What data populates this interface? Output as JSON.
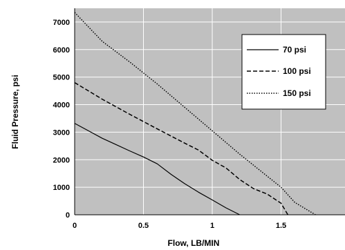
{
  "chart_data": {
    "type": "line",
    "title": "",
    "xlabel": "Flow, LB/MIN",
    "ylabel": "Fluid Pressure, psi",
    "xlim": [
      0,
      2
    ],
    "ylim": [
      0,
      7500
    ],
    "xticks": [
      0,
      0.5,
      1,
      1.5
    ],
    "xtick_labels": [
      "0",
      "0.5",
      "1",
      "1.5"
    ],
    "yticks": [
      0,
      1000,
      2000,
      3000,
      4000,
      5000,
      6000,
      7000
    ],
    "ytick_labels": [
      "0",
      "1000",
      "2000",
      "3000",
      "4000",
      "5000",
      "6000",
      "7000"
    ],
    "grid": true,
    "legend_position": "top-right",
    "colors": {
      "plot_background": "#c0c0c0",
      "gridline": "#ffffff",
      "line": "#000000"
    },
    "series": [
      {
        "name": "70 psi",
        "style": "solid",
        "x": [
          0,
          0.1,
          0.2,
          0.3,
          0.4,
          0.5,
          0.6,
          0.7,
          0.8,
          0.9,
          1.0,
          1.1,
          1.2
        ],
        "y": [
          3320,
          3050,
          2780,
          2550,
          2320,
          2100,
          1850,
          1470,
          1130,
          820,
          540,
          250,
          0
        ]
      },
      {
        "name": "100 psi",
        "style": "dashed",
        "x": [
          0,
          0.2,
          0.4,
          0.6,
          0.8,
          0.9,
          1.0,
          1.1,
          1.2,
          1.3,
          1.4,
          1.5,
          1.55
        ],
        "y": [
          4800,
          4200,
          3650,
          3120,
          2600,
          2350,
          1980,
          1700,
          1280,
          950,
          750,
          420,
          0
        ]
      },
      {
        "name": "150 psi",
        "style": "dotted",
        "x": [
          0,
          0.2,
          0.4,
          0.6,
          0.8,
          1.0,
          1.2,
          1.4,
          1.5,
          1.6,
          1.7,
          1.75
        ],
        "y": [
          7350,
          6300,
          5550,
          4750,
          3900,
          3050,
          2200,
          1400,
          1000,
          450,
          150,
          0
        ]
      }
    ]
  }
}
